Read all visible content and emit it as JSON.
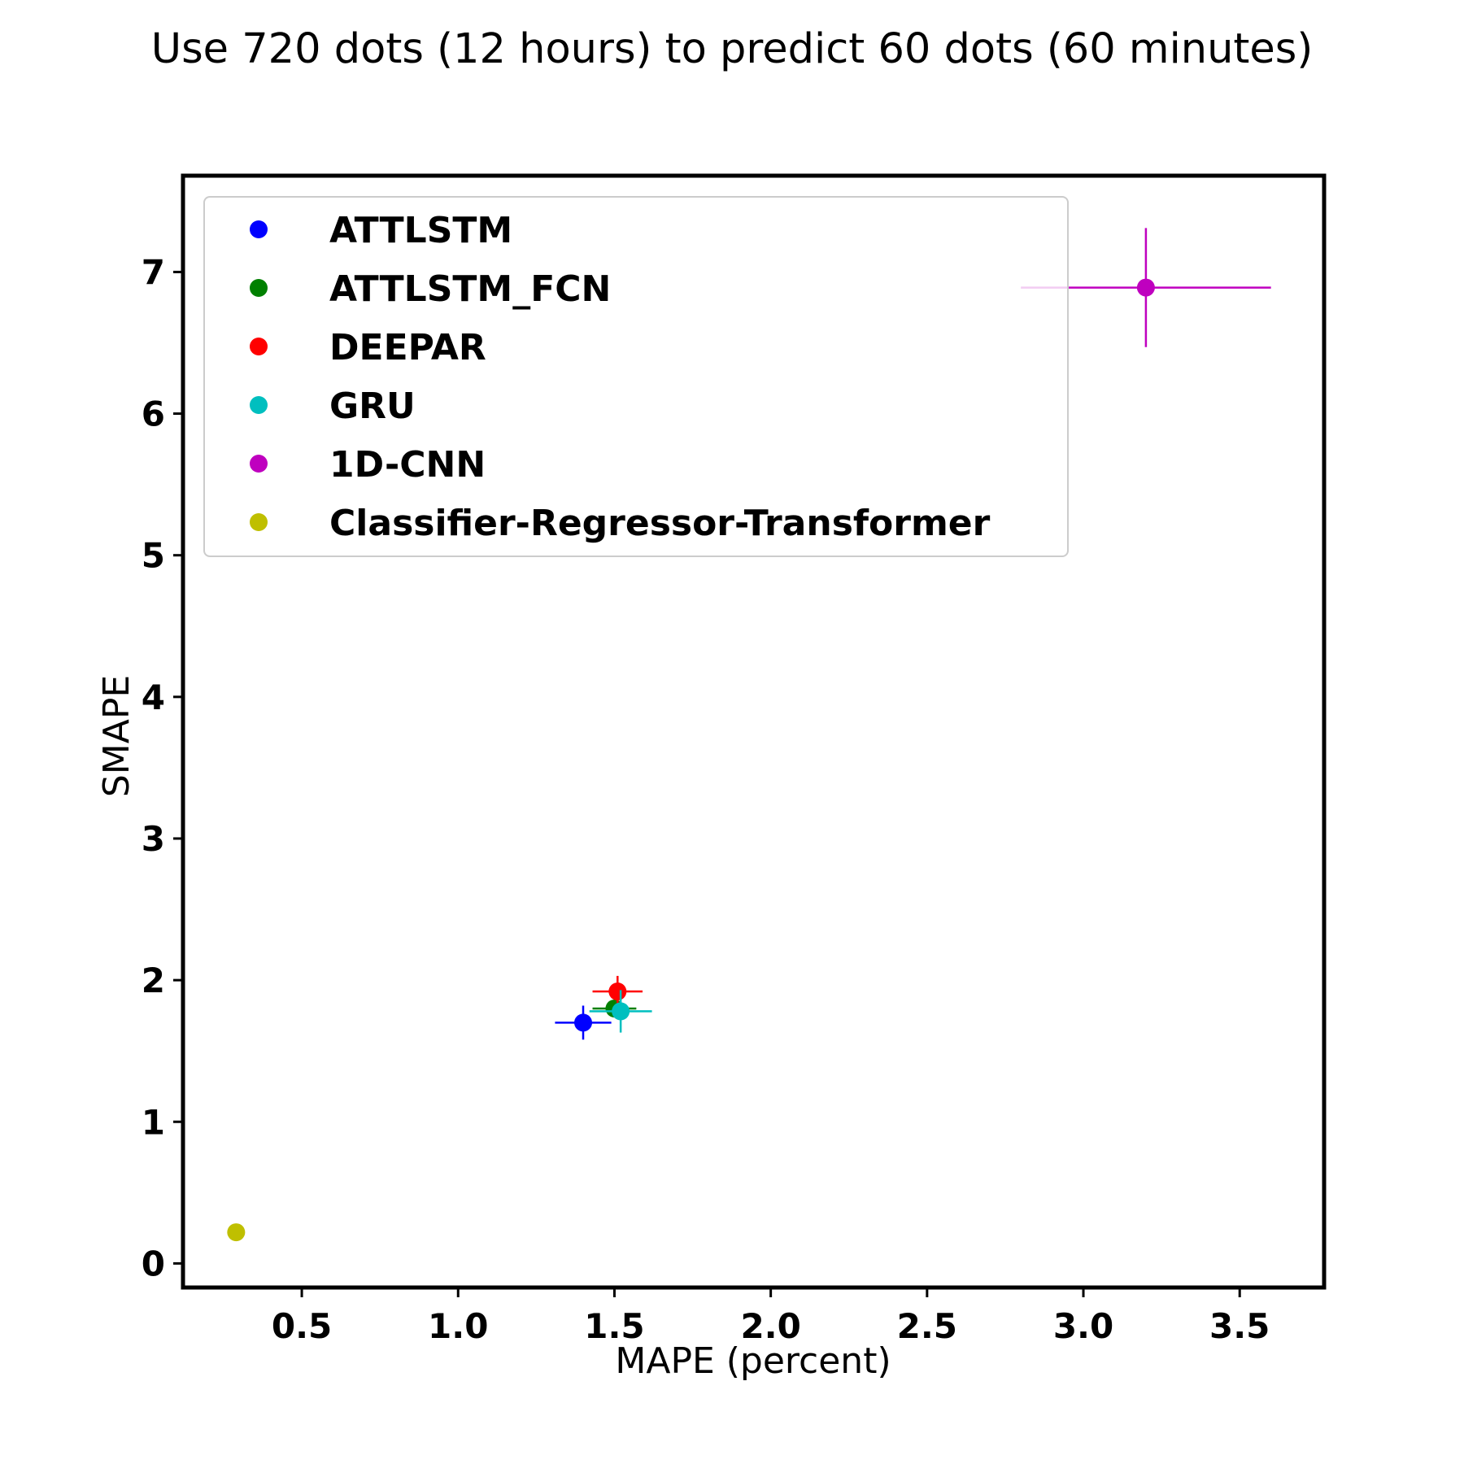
{
  "chart_data": {
    "type": "scatter",
    "title": "Use 720 dots (12 hours) to predict 60 dots (60 minutes)",
    "xlabel": "MAPE (percent)",
    "ylabel": "SMAPE",
    "xlim": [
      0.12,
      3.77
    ],
    "ylim": [
      -0.17,
      7.68
    ],
    "xticks": [
      0.5,
      1.0,
      1.5,
      2.0,
      2.5,
      3.0,
      3.5
    ],
    "xtick_labels": [
      "0.5",
      "1.0",
      "1.5",
      "2.0",
      "2.5",
      "3.0",
      "3.5"
    ],
    "yticks": [
      0,
      1,
      2,
      3,
      4,
      5,
      6,
      7
    ],
    "ytick_labels": [
      "0",
      "1",
      "2",
      "3",
      "4",
      "5",
      "6",
      "7"
    ],
    "grid": false,
    "legend_position": "top-left",
    "series": [
      {
        "name": "ATTLSTM",
        "color": "#0000ff",
        "x": 1.4,
        "y": 1.7,
        "xerr": 0.09,
        "yerr": 0.12
      },
      {
        "name": "ATTLSTM_FCN",
        "color": "#008000",
        "x": 1.5,
        "y": 1.8,
        "xerr": 0.07,
        "yerr": 0.03
      },
      {
        "name": "DEEPAR",
        "color": "#ff0000",
        "x": 1.51,
        "y": 1.92,
        "xerr": 0.08,
        "yerr": 0.11
      },
      {
        "name": "GRU",
        "color": "#00bfbf",
        "x": 1.52,
        "y": 1.78,
        "xerr": 0.1,
        "yerr": 0.15
      },
      {
        "name": "1D-CNN",
        "color": "#bf00bf",
        "x": 3.2,
        "y": 6.89,
        "xerr": 0.4,
        "yerr": 0.42
      },
      {
        "name": "Classifier-Regressor-Transformer",
        "color": "#bfbf00",
        "x": 0.29,
        "y": 0.22,
        "xerr": 0,
        "yerr": 0
      }
    ]
  }
}
